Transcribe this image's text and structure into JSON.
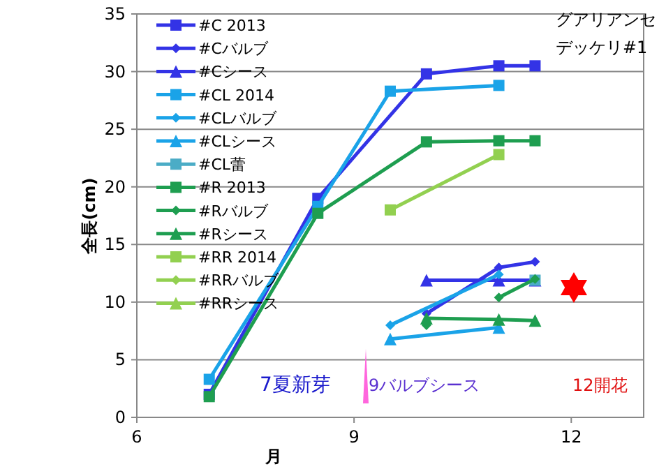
{
  "chart_data": {
    "type": "line",
    "title": "グアリアンセデッケリ#1",
    "xlabel": "月",
    "ylabel": "全長(cm)",
    "xlim": [
      6,
      13
    ],
    "ylim": [
      0,
      35
    ],
    "xticks": [
      6,
      9,
      12
    ],
    "yticks": [
      0,
      5,
      10,
      15,
      20,
      25,
      30,
      35
    ],
    "grid": "y",
    "legend": "top left",
    "annotations": [
      "7夏新芽",
      "9バルブシース",
      "12開花"
    ],
    "series": [
      {
        "name": "#C 2013",
        "color": "#3333e6",
        "marker": "square",
        "x": [
          7,
          8.5,
          10,
          11,
          11.5
        ],
        "values": [
          2,
          19,
          29.8,
          30.5,
          30.5
        ]
      },
      {
        "name": "#Cバルブ",
        "color": "#3333e6",
        "marker": "diamond",
        "x": [
          10,
          11,
          11.5
        ],
        "values": [
          9,
          13,
          13.5
        ]
      },
      {
        "name": "#Cシース",
        "color": "#3333e6",
        "marker": "triangle",
        "x": [
          10,
          11,
          11.5
        ],
        "values": [
          11.9,
          11.9,
          11.9
        ]
      },
      {
        "name": "#CL 2014",
        "color": "#1aa3e8",
        "marker": "square",
        "x": [
          7,
          8.5,
          9.5,
          11
        ],
        "values": [
          3.3,
          18.3,
          28.3,
          28.8
        ]
      },
      {
        "name": "#CLバルブ",
        "color": "#1aa3e8",
        "marker": "diamond",
        "x": [
          9.5,
          11
        ],
        "values": [
          8,
          12.4
        ]
      },
      {
        "name": "#CLシース",
        "color": "#1aa3e8",
        "marker": "triangle",
        "x": [
          9.5,
          11
        ],
        "values": [
          6.8,
          7.8
        ]
      },
      {
        "name": "#CL蕾",
        "color": "#4bacc6",
        "marker": "square",
        "x": [
          11.5
        ],
        "values": [
          11.9
        ]
      },
      {
        "name": "#R 2013",
        "color": "#1e9e50",
        "marker": "square",
        "x": [
          7,
          8.5,
          10,
          11,
          11.5
        ],
        "values": [
          1.8,
          17.7,
          23.9,
          24,
          24
        ]
      },
      {
        "name": "#Rバルブ",
        "color": "#1e9e50",
        "marker": "diamond",
        "x": [
          10,
          10.5,
          11,
          11.5
        ],
        "values": [
          8,
          null,
          10.4,
          12
        ]
      },
      {
        "name": "#Rシース",
        "color": "#1e9e50",
        "marker": "triangle",
        "x": [
          10,
          11,
          11.5
        ],
        "values": [
          8.6,
          8.5,
          8.4
        ]
      },
      {
        "name": "#RR 2014",
        "color": "#92d050",
        "marker": "square",
        "x": [
          9.5,
          11
        ],
        "values": [
          18,
          22.8
        ]
      },
      {
        "name": "#RRバルブ",
        "color": "#92d050",
        "marker": "diamond"
      },
      {
        "name": "#RRシース",
        "color": "#92d050",
        "marker": "triangle"
      }
    ]
  }
}
